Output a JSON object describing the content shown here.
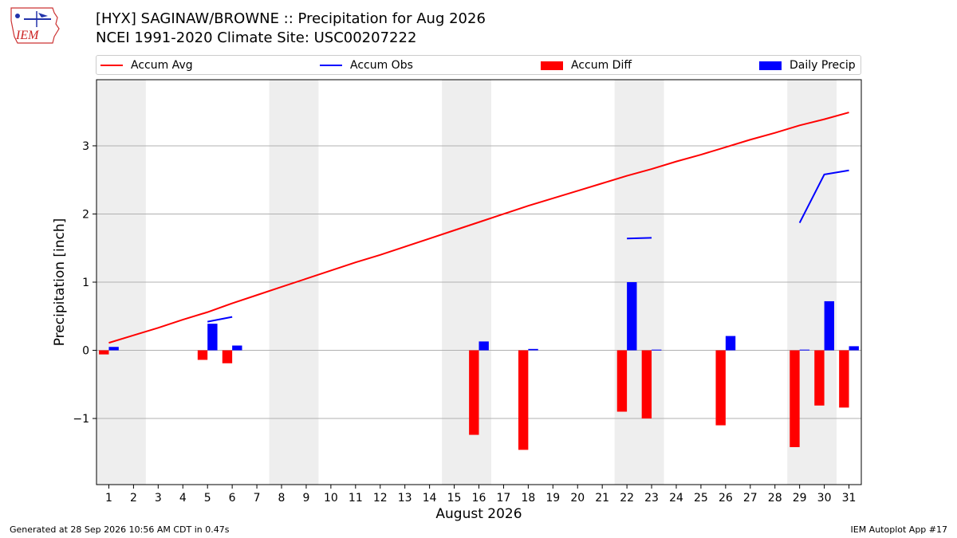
{
  "header": {
    "title_line1": "[HYX] SAGINAW/BROWNE :: Precipitation for Aug 2026",
    "title_line2": "NCEI 1991-2020 Climate Site: USC00207222",
    "logo_text": "IEM"
  },
  "legend": [
    {
      "label": "Accum Avg",
      "kind": "line",
      "color": "#ff0000"
    },
    {
      "label": "Accum Obs",
      "kind": "line",
      "color": "#0000ff"
    },
    {
      "label": "Accum Diff",
      "kind": "box",
      "color": "#ff0000"
    },
    {
      "label": "Daily Precip",
      "kind": "box",
      "color": "#0000ff"
    }
  ],
  "footer": {
    "left": "Generated at 28 Sep 2026 10:56 AM CDT in 0.47s",
    "right": "IEM Autoplot App #17"
  },
  "chart_data": {
    "type": "bar",
    "xlabel": "August 2026",
    "ylabel": "Precipitation [inch]",
    "ylim": [
      -1.97,
      3.97
    ],
    "xlim": [
      0.5,
      31.5
    ],
    "yticks": [
      -1,
      0,
      1,
      2,
      3
    ],
    "ytick_labels": [
      "−1",
      "0",
      "1",
      "2",
      "3"
    ],
    "days": [
      1,
      2,
      3,
      4,
      5,
      6,
      7,
      8,
      9,
      10,
      11,
      12,
      13,
      14,
      15,
      16,
      17,
      18,
      19,
      20,
      21,
      22,
      23,
      24,
      25,
      26,
      27,
      28,
      29,
      30,
      31
    ],
    "weekend_shading": [
      [
        0.5,
        2.5
      ],
      [
        7.5,
        9.5
      ],
      [
        14.5,
        16.5
      ],
      [
        21.5,
        23.5
      ],
      [
        28.5,
        30.5
      ]
    ],
    "grid": "horizontal",
    "colors": {
      "avg": "#ff0000",
      "obs": "#0000ff",
      "diff": "#ff0000",
      "precip": "#0000ff",
      "shade": "#eeeeee",
      "grid": "#b0b0b0"
    },
    "series": [
      {
        "name": "Accum Avg",
        "kind": "line",
        "values": [
          0.11,
          0.22,
          0.33,
          0.45,
          0.56,
          0.69,
          0.81,
          0.93,
          1.05,
          1.17,
          1.29,
          1.4,
          1.52,
          1.64,
          1.76,
          1.88,
          2.0,
          2.12,
          2.23,
          2.34,
          2.45,
          2.56,
          2.66,
          2.77,
          2.87,
          2.98,
          3.09,
          3.19,
          3.3,
          3.39,
          3.49
        ]
      },
      {
        "name": "Accum Obs",
        "kind": "line",
        "values": [
          null,
          null,
          null,
          null,
          0.42,
          0.49,
          null,
          null,
          null,
          null,
          null,
          null,
          null,
          null,
          null,
          null,
          null,
          null,
          null,
          null,
          null,
          1.64,
          1.65,
          null,
          null,
          null,
          null,
          null,
          1.87,
          2.58,
          2.64
        ]
      },
      {
        "name": "Accum Diff",
        "kind": "bar",
        "values": [
          -0.06,
          0,
          0,
          0,
          -0.14,
          -0.19,
          0,
          0,
          0,
          0,
          0,
          0,
          0,
          0,
          0,
          -1.24,
          0,
          -1.46,
          0,
          0,
          0,
          -0.9,
          -1.0,
          0,
          0,
          -1.1,
          0,
          0,
          -1.42,
          -0.81,
          -0.84
        ]
      },
      {
        "name": "Daily Precip",
        "kind": "bar",
        "values": [
          0.05,
          0,
          0,
          0,
          0.39,
          0.07,
          0,
          0,
          0,
          0,
          0,
          0,
          0,
          0,
          0,
          0.13,
          0,
          0.02,
          0,
          0,
          0,
          1.0,
          0.01,
          0,
          0,
          0.21,
          0,
          0,
          0.01,
          0.72,
          0.06
        ]
      }
    ]
  }
}
